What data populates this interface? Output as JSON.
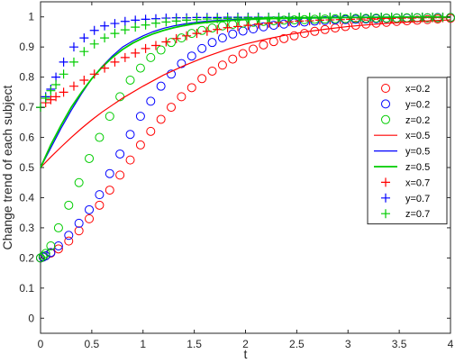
{
  "chart_data": {
    "type": "line",
    "xlabel": "t",
    "ylabel": "Change trend of each subject",
    "xlim": [
      0,
      4
    ],
    "ylim": [
      -0.05,
      1.05
    ],
    "xticks": [
      0,
      0.5,
      1,
      1.5,
      2,
      2.5,
      3,
      3.5,
      4
    ],
    "xtick_labels": [
      "0",
      "0.5",
      "1",
      "1.5",
      "2",
      "2.5",
      "3",
      "3.5",
      "4"
    ],
    "yticks": [
      0,
      0.1,
      0.2,
      0.3,
      0.4,
      0.5,
      0.6,
      0.7,
      0.8,
      0.9,
      1
    ],
    "ytick_labels": [
      "0",
      "0.1",
      "0.2",
      "0.3",
      "0.4",
      "0.5",
      "0.6",
      "0.7",
      "0.8",
      "0.9",
      "1"
    ],
    "grid": false,
    "legend_position": "right",
    "colors": {
      "red": "#ff0000",
      "blue": "#0000ff",
      "green": "#00cc00",
      "axis": "#262626"
    },
    "series": [
      {
        "name": "x=0.2",
        "marker": "circle",
        "color": "#ff0000",
        "x": [
          0,
          0.025,
          0.05,
          0.1,
          0.175,
          0.275,
          0.375,
          0.475,
          0.575,
          0.675,
          0.775,
          0.875,
          0.975,
          1.075,
          1.175,
          1.275,
          1.375,
          1.475,
          1.575,
          1.675,
          1.775,
          1.875,
          1.975,
          2.075,
          2.175,
          2.275,
          2.375,
          2.475,
          2.575,
          2.675,
          2.775,
          2.875,
          2.975,
          3.075,
          3.175,
          3.275,
          3.375,
          3.475,
          3.575,
          3.675,
          3.775,
          3.875,
          4.0
        ],
        "y": [
          0.2,
          0.203,
          0.207,
          0.216,
          0.23,
          0.256,
          0.29,
          0.33,
          0.375,
          0.425,
          0.475,
          0.525,
          0.575,
          0.62,
          0.66,
          0.7,
          0.735,
          0.765,
          0.795,
          0.82,
          0.84,
          0.86,
          0.878,
          0.893,
          0.907,
          0.918,
          0.928,
          0.937,
          0.945,
          0.952,
          0.958,
          0.963,
          0.968,
          0.972,
          0.976,
          0.979,
          0.982,
          0.985,
          0.987,
          0.989,
          0.991,
          0.993,
          0.995
        ]
      },
      {
        "name": "y=0.2",
        "marker": "circle",
        "color": "#0000ff",
        "x": [
          0,
          0.025,
          0.05,
          0.1,
          0.175,
          0.275,
          0.375,
          0.475,
          0.575,
          0.675,
          0.775,
          0.875,
          0.975,
          1.075,
          1.175,
          1.275,
          1.375,
          1.475,
          1.575,
          1.675,
          1.775,
          1.875,
          1.975,
          2.075,
          2.175,
          2.275,
          2.375,
          2.475,
          2.575,
          2.675,
          2.775,
          2.875,
          2.975,
          3.075,
          3.175,
          3.275,
          3.375,
          3.475,
          3.575,
          3.675,
          3.775,
          3.875,
          4.0
        ],
        "y": [
          0.2,
          0.203,
          0.207,
          0.218,
          0.24,
          0.275,
          0.315,
          0.36,
          0.41,
          0.48,
          0.545,
          0.61,
          0.67,
          0.72,
          0.77,
          0.81,
          0.845,
          0.87,
          0.895,
          0.915,
          0.93,
          0.943,
          0.953,
          0.96,
          0.967,
          0.972,
          0.976,
          0.98,
          0.983,
          0.986,
          0.988,
          0.99,
          0.991,
          0.992,
          0.993,
          0.994,
          0.995,
          0.996,
          0.996,
          0.997,
          0.997,
          0.998,
          0.998
        ]
      },
      {
        "name": "z=0.2",
        "marker": "circle",
        "color": "#00cc00",
        "x": [
          0,
          0.025,
          0.05,
          0.1,
          0.175,
          0.275,
          0.375,
          0.475,
          0.575,
          0.675,
          0.775,
          0.875,
          0.975,
          1.075,
          1.175,
          1.275,
          1.375,
          1.475,
          1.575,
          1.675,
          1.775,
          1.875,
          1.975,
          2.075,
          2.175,
          2.275,
          2.375,
          2.475,
          2.575,
          2.675,
          2.775,
          2.875,
          2.975,
          3.075,
          3.175,
          3.275,
          3.375,
          3.475,
          3.575,
          3.675,
          3.775,
          3.875,
          4.0
        ],
        "y": [
          0.2,
          0.206,
          0.215,
          0.24,
          0.3,
          0.375,
          0.45,
          0.53,
          0.6,
          0.67,
          0.735,
          0.79,
          0.83,
          0.865,
          0.89,
          0.915,
          0.93,
          0.945,
          0.955,
          0.963,
          0.97,
          0.975,
          0.979,
          0.982,
          0.985,
          0.987,
          0.989,
          0.99,
          0.991,
          0.992,
          0.993,
          0.994,
          0.994,
          0.995,
          0.995,
          0.996,
          0.996,
          0.996,
          0.997,
          0.997,
          0.997,
          0.997,
          0.998
        ]
      },
      {
        "name": "x=0.5",
        "marker": "line",
        "color": "#ff0000",
        "x": [
          0,
          0.1,
          0.2,
          0.3,
          0.4,
          0.5,
          0.6,
          0.8,
          1.0,
          1.2,
          1.4,
          1.6,
          1.8,
          2.0,
          2.2,
          2.4,
          2.6,
          2.8,
          3.0,
          3.2,
          3.4,
          3.6,
          3.8,
          4.0
        ],
        "y": [
          0.5,
          0.535,
          0.568,
          0.6,
          0.63,
          0.658,
          0.684,
          0.73,
          0.77,
          0.807,
          0.838,
          0.866,
          0.89,
          0.91,
          0.926,
          0.94,
          0.951,
          0.96,
          0.968,
          0.974,
          0.979,
          0.983,
          0.987,
          0.99
        ]
      },
      {
        "name": "y=0.5",
        "marker": "line",
        "color": "#0000ff",
        "x": [
          0,
          0.1,
          0.2,
          0.3,
          0.4,
          0.5,
          0.6,
          0.7,
          0.8,
          0.9,
          1.0,
          1.1,
          1.2,
          1.3,
          1.4,
          1.5,
          1.6,
          1.8,
          2.0,
          2.2,
          2.5,
          3.0,
          3.5,
          4.0
        ],
        "y": [
          0.5,
          0.565,
          0.63,
          0.69,
          0.745,
          0.795,
          0.835,
          0.87,
          0.9,
          0.92,
          0.937,
          0.951,
          0.962,
          0.97,
          0.976,
          0.981,
          0.985,
          0.99,
          0.993,
          0.995,
          0.997,
          0.998,
          0.999,
          0.999
        ]
      },
      {
        "name": "z=0.5",
        "marker": "line",
        "color": "#00cc00",
        "x": [
          0,
          0.1,
          0.2,
          0.3,
          0.4,
          0.5,
          0.6,
          0.7,
          0.8,
          0.9,
          1.0,
          1.1,
          1.2,
          1.3,
          1.4,
          1.5,
          1.6,
          1.8,
          2.0,
          2.2,
          2.5,
          3.0,
          3.5,
          4.0
        ],
        "y": [
          0.5,
          0.575,
          0.64,
          0.7,
          0.75,
          0.795,
          0.833,
          0.865,
          0.892,
          0.913,
          0.93,
          0.944,
          0.955,
          0.964,
          0.971,
          0.977,
          0.981,
          0.987,
          0.991,
          0.994,
          0.996,
          0.998,
          0.999,
          0.999
        ]
      },
      {
        "name": "x=0.7",
        "marker": "plus",
        "color": "#ff0000",
        "x": [
          0,
          0.05,
          0.1,
          0.15,
          0.225,
          0.325,
          0.425,
          0.525,
          0.625,
          0.725,
          0.825,
          0.925,
          1.025,
          1.125,
          1.225,
          1.325,
          1.425,
          1.525,
          1.625,
          1.725,
          1.825,
          1.925,
          2.025,
          2.125,
          2.225,
          2.325,
          2.425,
          2.525,
          2.625,
          2.725,
          2.825,
          2.925,
          3.025,
          3.125,
          3.225,
          3.325,
          3.425,
          3.525,
          3.625,
          3.725,
          3.825,
          3.925
        ],
        "y": [
          0.7,
          0.715,
          0.725,
          0.735,
          0.75,
          0.77,
          0.79,
          0.81,
          0.83,
          0.85,
          0.865,
          0.88,
          0.895,
          0.905,
          0.917,
          0.928,
          0.937,
          0.945,
          0.952,
          0.958,
          0.964,
          0.968,
          0.972,
          0.976,
          0.979,
          0.981,
          0.984,
          0.986,
          0.987,
          0.989,
          0.99,
          0.991,
          0.992,
          0.993,
          0.994,
          0.995,
          0.995,
          0.996,
          0.996,
          0.997,
          0.997,
          0.997
        ]
      },
      {
        "name": "y=0.7",
        "marker": "plus",
        "color": "#0000ff",
        "x": [
          0,
          0.05,
          0.1,
          0.15,
          0.225,
          0.325,
          0.425,
          0.525,
          0.625,
          0.725,
          0.825,
          0.925,
          1.025,
          1.125,
          1.225,
          1.325,
          1.425,
          1.525,
          1.625,
          1.725,
          1.825,
          1.925,
          2.025,
          2.125,
          2.225,
          2.325,
          2.425,
          2.525,
          2.625,
          2.725,
          2.825,
          2.925,
          3.025,
          3.125,
          3.225,
          3.325,
          3.425,
          3.525,
          3.625,
          3.725,
          3.825,
          3.925
        ],
        "y": [
          0.7,
          0.735,
          0.76,
          0.8,
          0.85,
          0.9,
          0.93,
          0.955,
          0.97,
          0.978,
          0.985,
          0.989,
          0.992,
          0.994,
          0.996,
          0.997,
          0.997,
          0.998,
          0.998,
          0.998,
          0.999,
          0.999,
          0.999,
          0.999,
          0.999,
          0.999,
          0.999,
          0.999,
          0.999,
          0.999,
          0.999,
          0.999,
          0.999,
          0.999,
          0.999,
          0.999,
          0.999,
          0.999,
          0.999,
          0.999,
          0.999,
          0.999
        ]
      },
      {
        "name": "z=0.7",
        "marker": "plus",
        "color": "#00cc00",
        "x": [
          0,
          0.05,
          0.1,
          0.15,
          0.225,
          0.325,
          0.425,
          0.525,
          0.625,
          0.725,
          0.825,
          0.925,
          1.025,
          1.125,
          1.225,
          1.325,
          1.425,
          1.525,
          1.625,
          1.725,
          1.825,
          1.925,
          2.025,
          2.125,
          2.225,
          2.325,
          2.425,
          2.525,
          2.625,
          2.725,
          2.825,
          2.925,
          3.025,
          3.125,
          3.225,
          3.325,
          3.425,
          3.525,
          3.625,
          3.725,
          3.825,
          3.925
        ],
        "y": [
          0.7,
          0.73,
          0.755,
          0.775,
          0.81,
          0.85,
          0.885,
          0.91,
          0.93,
          0.945,
          0.957,
          0.966,
          0.973,
          0.979,
          0.983,
          0.986,
          0.989,
          0.991,
          0.993,
          0.994,
          0.995,
          0.996,
          0.997,
          0.997,
          0.998,
          0.998,
          0.998,
          0.999,
          0.999,
          0.999,
          0.999,
          0.999,
          0.999,
          0.999,
          0.999,
          0.999,
          0.999,
          0.999,
          0.999,
          0.999,
          0.999,
          0.999
        ]
      }
    ]
  }
}
